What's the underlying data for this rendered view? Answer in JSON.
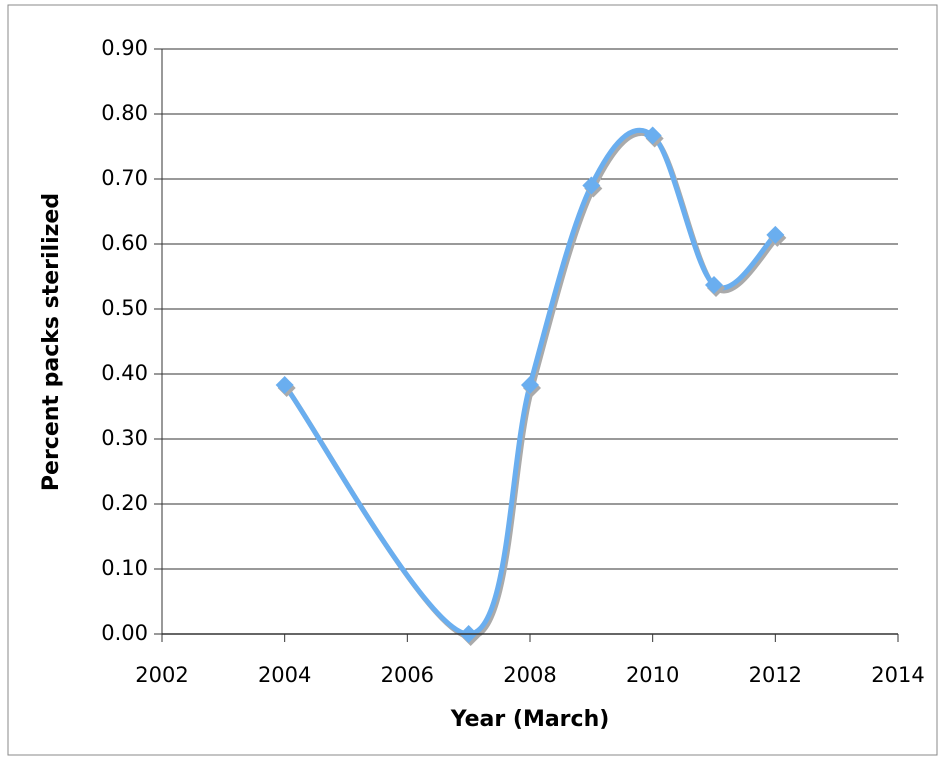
{
  "chart_data": {
    "type": "line",
    "x_label": "Year (March)",
    "y_label": "Percent packs sterilized",
    "x": [
      2004,
      2007,
      2008,
      2009,
      2010,
      2011,
      2012
    ],
    "series": [
      {
        "color": "#6aaeef",
        "values": [
          0.383,
          0.0,
          0.383,
          0.69,
          0.767,
          0.537,
          0.614
        ]
      }
    ],
    "xlim": [
      2002,
      2014
    ],
    "xticks": [
      2002,
      2004,
      2006,
      2008,
      2010,
      2012,
      2014
    ],
    "ylim": [
      0,
      0.9
    ],
    "yticks": [
      {
        "value": 0,
        "label": "0.00"
      },
      {
        "value": 0.1,
        "label": "0.10"
      },
      {
        "value": 0.2,
        "label": "0.20"
      },
      {
        "value": 0.3,
        "label": "0.30"
      },
      {
        "value": 0.4,
        "label": "0.40"
      },
      {
        "value": 0.5,
        "label": "0.50"
      },
      {
        "value": 0.6,
        "label": "0.60"
      },
      {
        "value": 0.7,
        "label": "0.70"
      },
      {
        "value": 0.8,
        "label": "0.80"
      },
      {
        "value": 0.9,
        "label": "0.90"
      }
    ],
    "grid": true,
    "smooth": true
  }
}
